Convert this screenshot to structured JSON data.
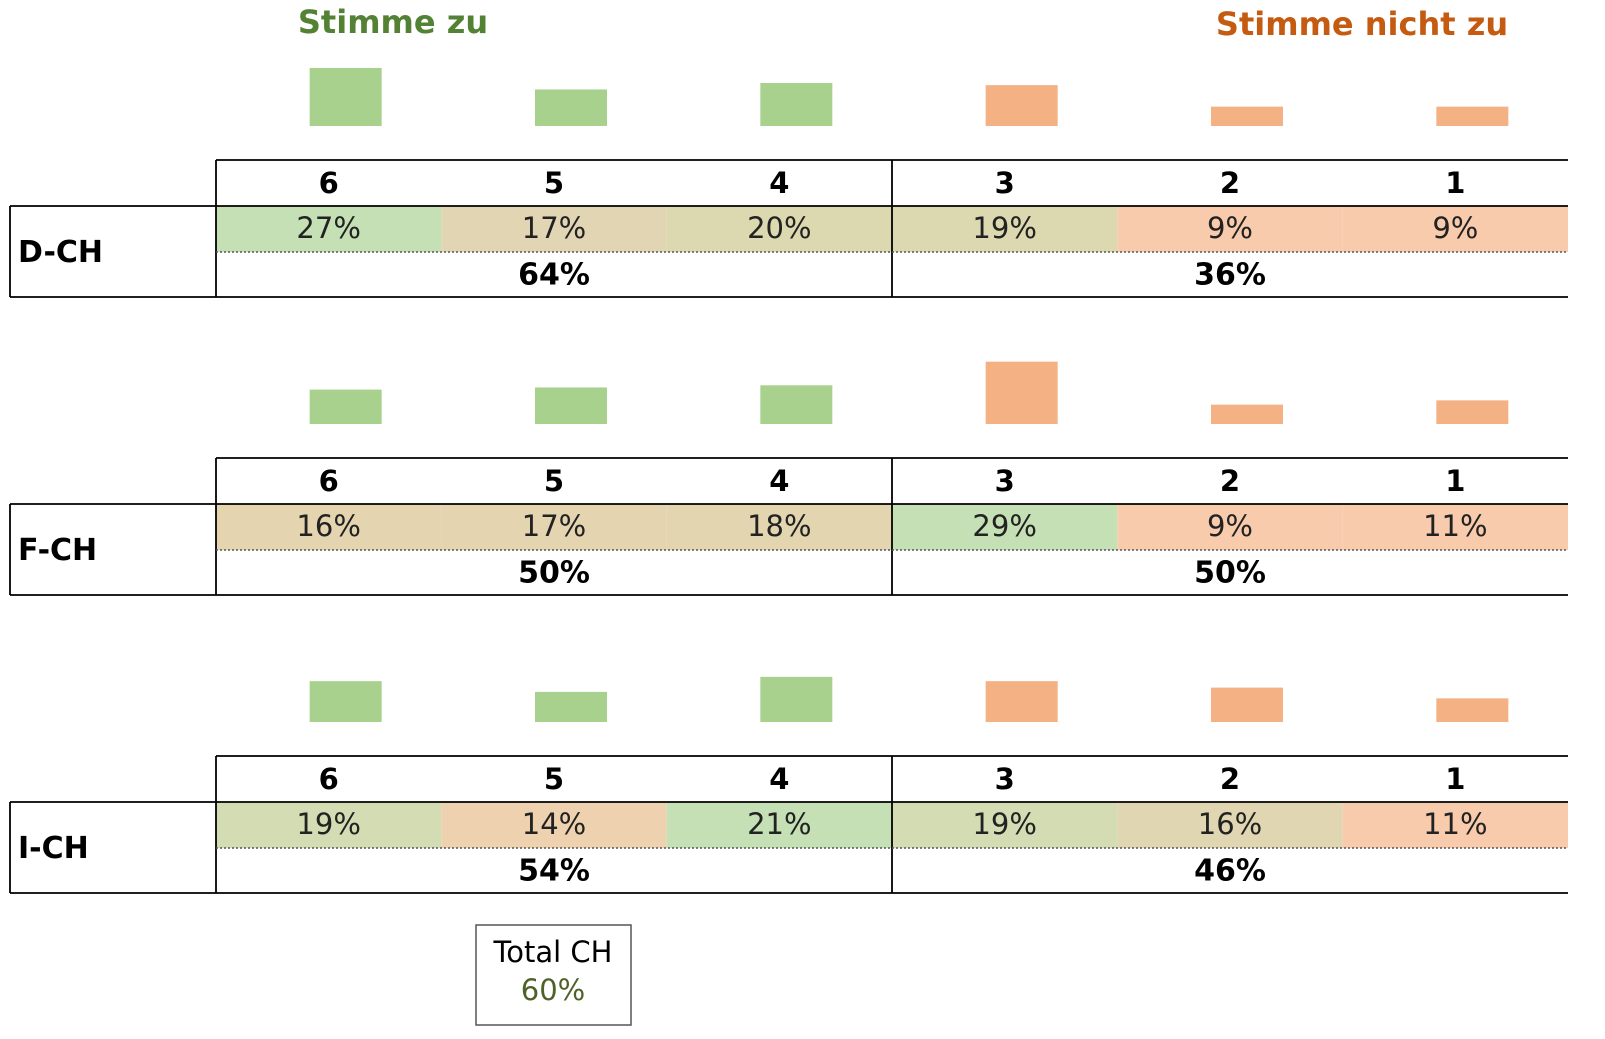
{
  "header": {
    "agree": "Stimme zu",
    "disagree": "Stimme nicht zu"
  },
  "chart_data": [
    {
      "type": "bar",
      "region": "D-CH",
      "categories": [
        "6",
        "5",
        "4",
        "3",
        "2",
        "1"
      ],
      "values": [
        27,
        17,
        20,
        19,
        9,
        9
      ],
      "value_labels": [
        "27%",
        "17%",
        "20%",
        "19%",
        "9%",
        "9%"
      ],
      "colors": [
        "#a9d18e",
        "#a9d18e",
        "#a9d18e",
        "#f4b183",
        "#f4b183",
        "#f4b183"
      ],
      "cell_colors": [
        "#c5e0b4",
        "#e2d5b4",
        "#dcd8b0",
        "#dcd8b0",
        "#f8cbad",
        "#f8cbad"
      ],
      "totals": [
        64,
        36
      ],
      "total_labels": [
        "64%",
        "36%"
      ]
    },
    {
      "type": "bar",
      "region": "F-CH",
      "categories": [
        "6",
        "5",
        "4",
        "3",
        "2",
        "1"
      ],
      "values": [
        16,
        17,
        18,
        29,
        9,
        11
      ],
      "value_labels": [
        "16%",
        "17%",
        "18%",
        "29%",
        "9%",
        "11%"
      ],
      "colors": [
        "#a9d18e",
        "#a9d18e",
        "#a9d18e",
        "#f4b183",
        "#f4b183",
        "#f4b183"
      ],
      "cell_colors": [
        "#e5d4b0",
        "#e5d4b0",
        "#e2d5b0",
        "#c5e0b4",
        "#f8cbad",
        "#f8cbad"
      ],
      "totals": [
        50,
        50
      ],
      "total_labels": [
        "50%",
        "50%"
      ]
    },
    {
      "type": "bar",
      "region": "I-CH",
      "categories": [
        "6",
        "5",
        "4",
        "3",
        "2",
        "1"
      ],
      "values": [
        19,
        14,
        21,
        19,
        16,
        11
      ],
      "value_labels": [
        "19%",
        "14%",
        "21%",
        "19%",
        "16%",
        "11%"
      ],
      "colors": [
        "#a9d18e",
        "#a9d18e",
        "#a9d18e",
        "#f4b183",
        "#f4b183",
        "#f4b183"
      ],
      "cell_colors": [
        "#d3dcb2",
        "#eed2b0",
        "#c5e0b4",
        "#d3dcb2",
        "#e0d6b2",
        "#f8cbad"
      ],
      "totals": [
        54,
        46
      ],
      "total_labels": [
        "54%",
        "46%"
      ]
    }
  ],
  "total": {
    "label": "Total CH",
    "value": 60,
    "value_label": "60%"
  }
}
